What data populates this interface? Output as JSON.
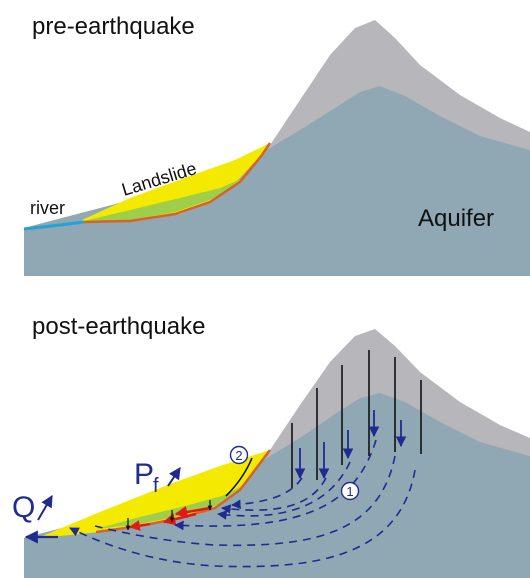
{
  "panels": {
    "pre": {
      "title": "pre-earthquake",
      "labels": {
        "river": "river",
        "landslide": "Landslide",
        "aquifer": "Aquifer"
      }
    },
    "post": {
      "title": "post-earthquake",
      "labels": {
        "q": "Q",
        "pf_main": "P",
        "pf_sub": "f",
        "marker_1": "1",
        "marker_2": "2"
      }
    }
  },
  "colors": {
    "mountain": "#b7b7bb",
    "aquifer": "#8fa8b3",
    "landslide": "#f3ea00",
    "landslide_green": "#9fce4a",
    "slip_surface": "#d9622b",
    "river": "#1fa3d8",
    "flow_arrows": "#1f2b8f",
    "pressure_arrows": "#e11919",
    "fractures": "#111111"
  }
}
